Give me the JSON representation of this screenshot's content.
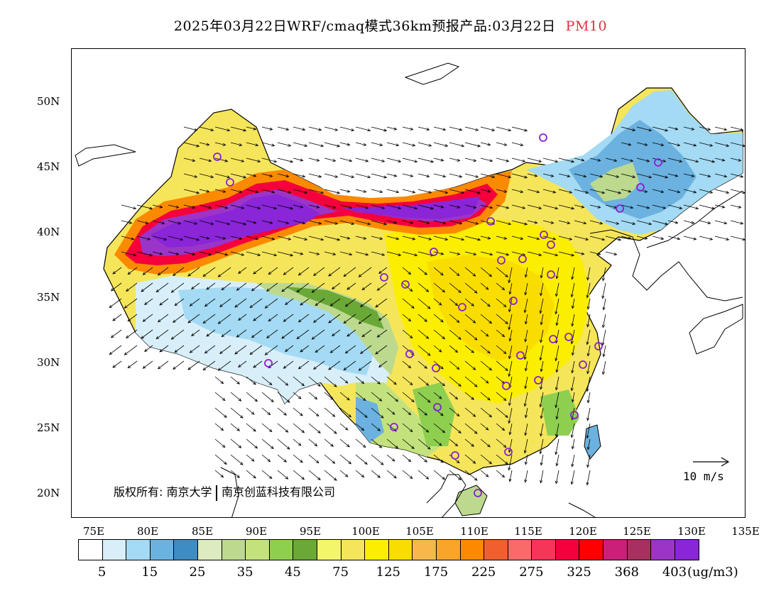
{
  "title": {
    "main": "2025年03月22日WRF/cmaq模式36km预报产品:03月22日",
    "pollutant": "PM10",
    "pollutant_color": "#e0303a"
  },
  "map": {
    "lat_labels": [
      "50N",
      "45N",
      "40N",
      "35N",
      "30N",
      "25N",
      "20N"
    ],
    "lon_labels": [
      "75E",
      "80E",
      "85E",
      "90E",
      "95E",
      "100E",
      "105E",
      "110E",
      "115E",
      "120E",
      "125E",
      "130E",
      "135E"
    ],
    "copyright_left": "版权所有: 南京大学",
    "copyright_right": "南京创蓝科技有限公司",
    "wind_reference_label": "10 m/s",
    "station_marker_color": "#8a1fd0"
  },
  "colorbar": {
    "colors": [
      "#ffffff",
      "#d8effa",
      "#a4daf3",
      "#6cb2e0",
      "#3f8bc4",
      "#dcebc0",
      "#bcd98e",
      "#c3e27e",
      "#8fcf50",
      "#6aa838",
      "#f3f56a",
      "#f5e55a",
      "#fbee00",
      "#f9dd00",
      "#f6b84a",
      "#f9a528",
      "#fb8a00",
      "#f0602e",
      "#fb6a6a",
      "#f53659",
      "#f5003c",
      "#ff0000",
      "#cc1f7a",
      "#a83060",
      "#9a35c8",
      "#8a25d8"
    ],
    "tick_labels": [
      "5",
      "15",
      "25",
      "35",
      "45",
      "75",
      "125",
      "175",
      "225",
      "275",
      "325",
      "368",
      "403"
    ],
    "unit": "(ug/m3)"
  }
}
